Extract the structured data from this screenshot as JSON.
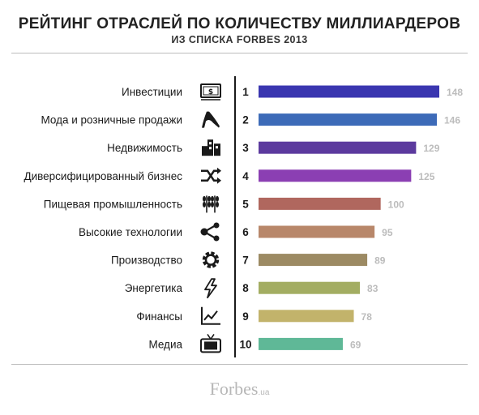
{
  "header": {
    "title": "РЕЙТИНГ ОТРАСЛЕЙ ПО КОЛИЧЕСТВУ МИЛЛИАРДЕРОВ",
    "subtitle": "ИЗ СПИСКА FORBES 2013"
  },
  "brand": {
    "name": "Forbes",
    "suffix": ".ua"
  },
  "chart_data": {
    "type": "bar",
    "orientation": "horizontal",
    "categories": [
      "Инвестиции",
      "Мода и розничные продажи",
      "Недвижимость",
      "Диверсифицированный бизнес",
      "Пищевая промышленность",
      "Высокие технологии",
      "Производство",
      "Энергетика",
      "Финансы",
      "Медиа"
    ],
    "ranks": [
      "1",
      "2",
      "3",
      "4",
      "5",
      "6",
      "7",
      "8",
      "9",
      "10"
    ],
    "values": [
      148,
      146,
      129,
      125,
      100,
      95,
      89,
      83,
      78,
      69
    ],
    "icons": [
      "money-icon",
      "high-heel-icon",
      "buildings-icon",
      "shuffle-icon",
      "wheat-icon",
      "network-icon",
      "gear-icon",
      "lightning-icon",
      "line-chart-icon",
      "tv-icon"
    ],
    "colors": [
      "#3a36b0",
      "#3d6bb8",
      "#5c3a9e",
      "#8b3fb3",
      "#b0675e",
      "#b8876a",
      "#9c8a63",
      "#a3ad62",
      "#c2b36b",
      "#5fb897"
    ],
    "xlim": [
      0,
      148
    ],
    "grid": false,
    "legend": "none"
  }
}
